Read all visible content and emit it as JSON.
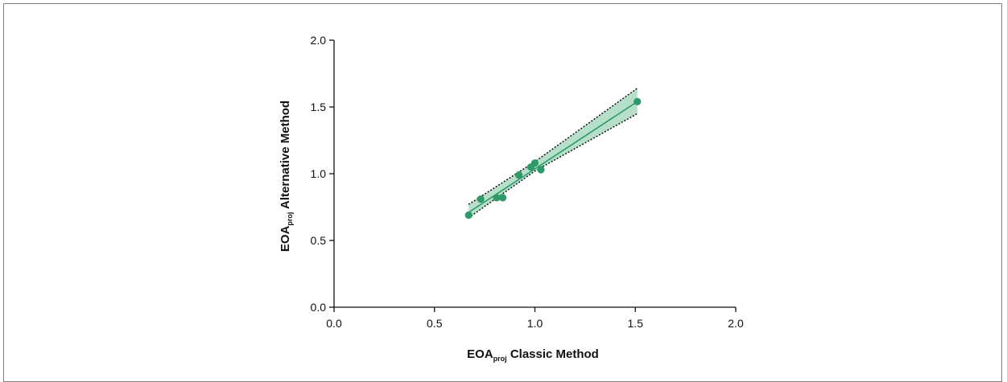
{
  "chart_data": {
    "type": "scatter",
    "xlabel": {
      "main": "EOA",
      "sub": "proj",
      "rest": " Classic Method"
    },
    "ylabel": {
      "main": "EOA",
      "sub": "proj",
      "rest": " Alternative Method"
    },
    "xlim": [
      0,
      2
    ],
    "ylim": [
      0,
      2
    ],
    "xticks": [
      0.0,
      0.5,
      1.0,
      1.5,
      2.0
    ],
    "yticks": [
      0.0,
      0.5,
      1.0,
      1.5,
      2.0
    ],
    "xtick_labels": [
      "0.0",
      "0.5",
      "1.0",
      "1.5",
      "2.0"
    ],
    "ytick_labels": [
      "0.0",
      "0.5",
      "1.0",
      "1.5",
      "2.0"
    ],
    "grid": false,
    "series": [
      {
        "points": [
          {
            "x": 0.67,
            "y": 0.69
          },
          {
            "x": 0.73,
            "y": 0.81
          },
          {
            "x": 0.81,
            "y": 0.82
          },
          {
            "x": 0.84,
            "y": 0.82
          },
          {
            "x": 0.92,
            "y": 0.99
          },
          {
            "x": 0.98,
            "y": 1.05
          },
          {
            "x": 1.0,
            "y": 1.08
          },
          {
            "x": 1.03,
            "y": 1.03
          },
          {
            "x": 1.51,
            "y": 1.54
          }
        ]
      }
    ],
    "regression": {
      "line": [
        {
          "x": 0.67,
          "y": 0.71
        },
        {
          "x": 1.51,
          "y": 1.54
        }
      ],
      "band_upper": [
        {
          "x": 0.67,
          "y": 0.77
        },
        {
          "x": 1.0,
          "y": 1.09
        },
        {
          "x": 1.51,
          "y": 1.64
        }
      ],
      "band_lower": [
        {
          "x": 0.67,
          "y": 0.67
        },
        {
          "x": 1.0,
          "y": 1.02
        },
        {
          "x": 1.51,
          "y": 1.45
        }
      ]
    },
    "colors": {
      "point": "#2e9a6a",
      "line": "#2e9a6a",
      "band": "#a9d9bf",
      "band_edge": "#111111",
      "axis": "#111111"
    }
  }
}
